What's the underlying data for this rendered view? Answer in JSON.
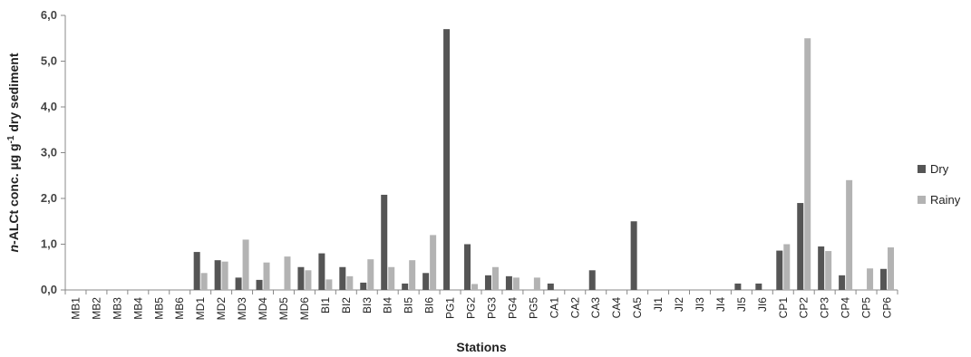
{
  "chart_data": {
    "type": "bar",
    "xlabel": "Stations",
    "ylabel": {
      "prefix": "n",
      "main": "-ALCt conc. µg g",
      "sup": "-1",
      "suffix": " dry sediment"
    },
    "ylim": [
      0,
      6
    ],
    "yticks": [
      "0,0",
      "1,0",
      "2,0",
      "3,0",
      "4,0",
      "5,0",
      "6,0"
    ],
    "grid": false,
    "legend_position": "right",
    "categories": [
      "MB1",
      "MB2",
      "MB3",
      "MB4",
      "MB5",
      "MB6",
      "MD1",
      "MD2",
      "MD3",
      "MD4",
      "MD5",
      "MD6",
      "BI1",
      "BI2",
      "BI3",
      "BI4",
      "BI5",
      "BI6",
      "PG1",
      "PG2",
      "PG3",
      "PG4",
      "PG5",
      "CA1",
      "CA2",
      "CA3",
      "CA4",
      "CA5",
      "JI1",
      "JI2",
      "JI3",
      "JI4",
      "JI5",
      "JI6",
      "CP1",
      "CP2",
      "CP3",
      "CP4",
      "CP5",
      "CP6"
    ],
    "series": [
      {
        "name": "Dry",
        "color": "#555555",
        "values": [
          0,
          0,
          0,
          0,
          0,
          0,
          0.83,
          0.65,
          0.27,
          0.22,
          0,
          0.5,
          0.8,
          0.5,
          0.16,
          2.08,
          0.14,
          0.37,
          5.7,
          1.0,
          0.32,
          0.3,
          0,
          0.14,
          0,
          0.43,
          0,
          1.5,
          0,
          0,
          0,
          0,
          0.14,
          0.14,
          0.86,
          1.9,
          0.95,
          0.32,
          0,
          0.46
        ]
      },
      {
        "name": "Rainy",
        "color": "#b3b3b3",
        "values": [
          0,
          0,
          0,
          0,
          0,
          0,
          0.37,
          0.62,
          1.1,
          0.6,
          0.73,
          0.43,
          0.23,
          0.3,
          0.67,
          0.5,
          0.65,
          1.2,
          0,
          0.13,
          0.5,
          0.27,
          0.27,
          0,
          0,
          0,
          0,
          0,
          0,
          0,
          0,
          0,
          0,
          0,
          1.0,
          5.5,
          0.85,
          2.4,
          0.47,
          0.93
        ]
      }
    ]
  }
}
